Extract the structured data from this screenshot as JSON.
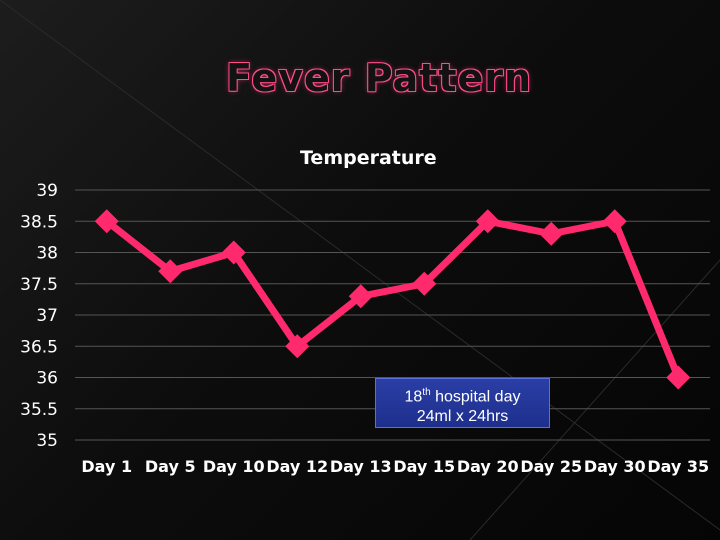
{
  "slide": {
    "title": "Fever Pattern"
  },
  "colors": {
    "series": "#ff2a6d",
    "grid": "#555555",
    "background": "#0d0d0d",
    "callout": "#243697",
    "title_glow": "#ff4d8a"
  },
  "chart_data": {
    "type": "line",
    "title": "Temperature",
    "xlabel": "",
    "ylabel": "",
    "categories": [
      "Day 1",
      "Day 5",
      "Day 10",
      "Day 12",
      "Day 13",
      "Day 15",
      "Day 20",
      "Day 25",
      "Day 30",
      "Day 35"
    ],
    "series": [
      {
        "values": [
          38.5,
          37.7,
          38.0,
          36.5,
          37.3,
          37.5,
          38.5,
          38.3,
          38.5,
          36.0
        ]
      }
    ],
    "ylim": [
      35,
      39
    ],
    "yticks": [
      "39",
      "38.5",
      "38",
      "37.5",
      "37",
      "36.5",
      "36",
      "35.5",
      "35"
    ],
    "grid": true,
    "legend": "none",
    "marker": "diamond"
  },
  "annotation": {
    "day_number": "18",
    "day_suffix": "th",
    "day_text": " hospital day",
    "line2": "24ml x 24hrs"
  }
}
